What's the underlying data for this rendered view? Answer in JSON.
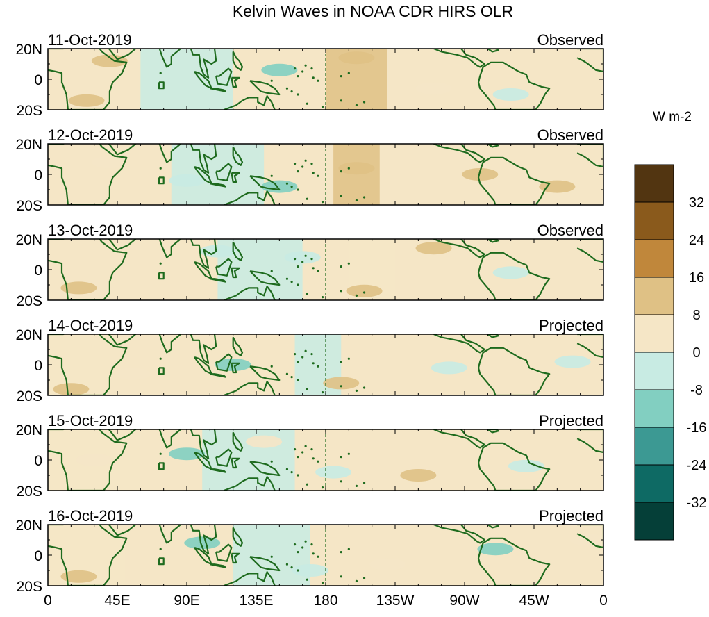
{
  "title": "Kelvin Waves in NOAA CDR HIRS OLR",
  "colorbar": {
    "units": "W m-2",
    "tick_labels": [
      "32",
      "24",
      "16",
      "8",
      "0",
      "-8",
      "-16",
      "-24",
      "-32"
    ],
    "colors": [
      "#523511",
      "#8a5a1c",
      "#c0873b",
      "#dfc185",
      "#f5e6c6",
      "#c8ebe3",
      "#82cfc1",
      "#3c9993",
      "#0e6a64",
      "#053f38"
    ]
  },
  "panels": [
    {
      "date": "11-Oct-2019",
      "status": "Observed"
    },
    {
      "date": "12-Oct-2019",
      "status": "Observed"
    },
    {
      "date": "13-Oct-2019",
      "status": "Observed"
    },
    {
      "date": "14-Oct-2019",
      "status": "Projected"
    },
    {
      "date": "15-Oct-2019",
      "status": "Projected"
    },
    {
      "date": "16-Oct-2019",
      "status": "Projected"
    }
  ],
  "lat_labels": [
    "20N",
    "0",
    "20S"
  ],
  "lon_labels": [
    "0",
    "45E",
    "90E",
    "135E",
    "180",
    "135W",
    "90W",
    "45W",
    "0"
  ],
  "coastline_color": "#1e6b1e",
  "dateline_label": "180"
}
